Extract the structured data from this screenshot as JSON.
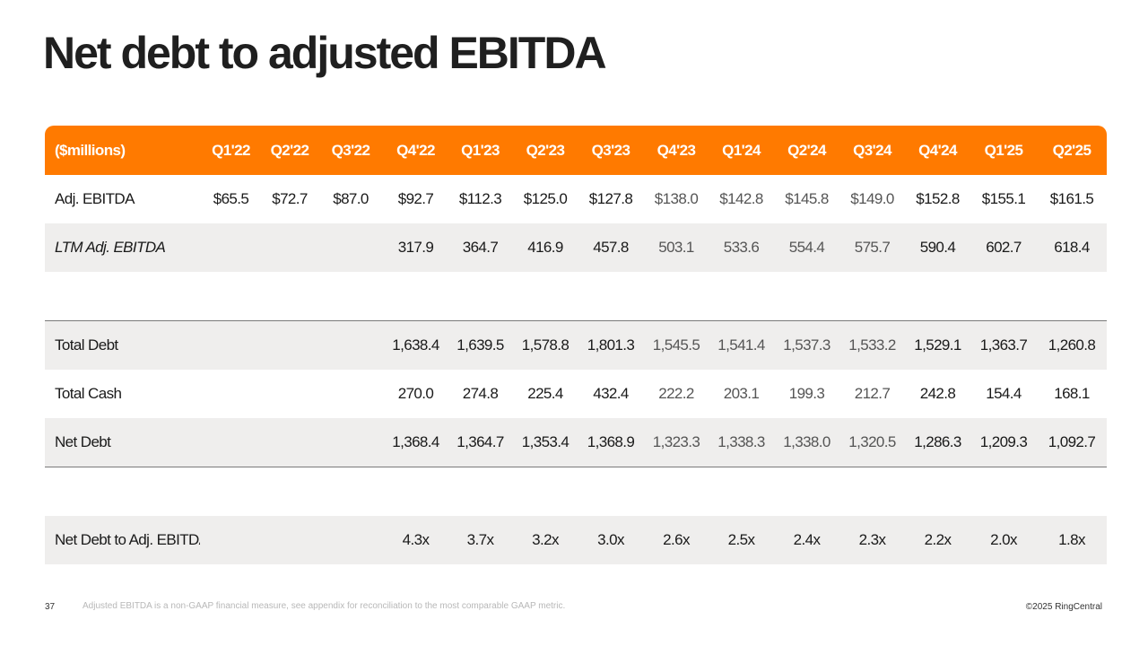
{
  "title": "Net debt to adjusted EBITDA",
  "table": {
    "header": [
      "($millions)",
      "Q1'22",
      "Q2'22",
      "Q3'22",
      "Q4'22",
      "Q1'23",
      "Q2'23",
      "Q3'23",
      "Q4'23",
      "Q1'24",
      "Q2'24",
      "Q3'24",
      "Q4'24",
      "Q1'25",
      "Q2'25"
    ],
    "rows": [
      {
        "label": "Adj. EBITDA",
        "values": [
          "$65.5",
          "$72.7",
          "$87.0",
          "$92.7",
          "$112.3",
          "$125.0",
          "$127.8",
          "$138.0",
          "$142.8",
          "$145.8",
          "$149.0",
          "$152.8",
          "$155.1",
          "$161.5"
        ]
      },
      {
        "label": "LTM Adj. EBITDA",
        "values": [
          "",
          "",
          "",
          "317.9",
          "364.7",
          "416.9",
          "457.8",
          "503.1",
          "533.6",
          "554.4",
          "575.7",
          "590.4",
          "602.7",
          "618.4"
        ]
      },
      {
        "label": "Total Debt",
        "values": [
          "",
          "",
          "",
          "1,638.4",
          "1,639.5",
          "1,578.8",
          "1,801.3",
          "1,545.5",
          "1,541.4",
          "1,537.3",
          "1,533.2",
          "1,529.1",
          "1,363.7",
          "1,260.8"
        ]
      },
      {
        "label": "Total Cash",
        "values": [
          "",
          "",
          "",
          "270.0",
          "274.8",
          "225.4",
          "432.4",
          "222.2",
          "203.1",
          "199.3",
          "212.7",
          "242.8",
          "154.4",
          "168.1"
        ]
      },
      {
        "label": "Net Debt",
        "values": [
          "",
          "",
          "",
          "1,368.4",
          "1,364.7",
          "1,353.4",
          "1,368.9",
          "1,323.3",
          "1,338.3",
          "1,338.0",
          "1,320.5",
          "1,286.3",
          "1,209.3",
          "1,092.7"
        ]
      },
      {
        "label": "Net Debt to Adj. EBITDA",
        "values": [
          "",
          "",
          "",
          "4.3x",
          "3.7x",
          "3.2x",
          "3.0x",
          "2.6x",
          "2.5x",
          "2.4x",
          "2.3x",
          "2.2x",
          "2.0x",
          "1.8x"
        ]
      }
    ]
  },
  "footer": {
    "page_number": "37",
    "note": "Adjusted EBITDA is a non-GAAP financial measure, see appendix for reconciliation to the most comparable GAAP metric.",
    "copyright": "©2025 RingCentral"
  },
  "colors": {
    "accent": "#ff7a00",
    "row_shade": "#efeeed"
  }
}
